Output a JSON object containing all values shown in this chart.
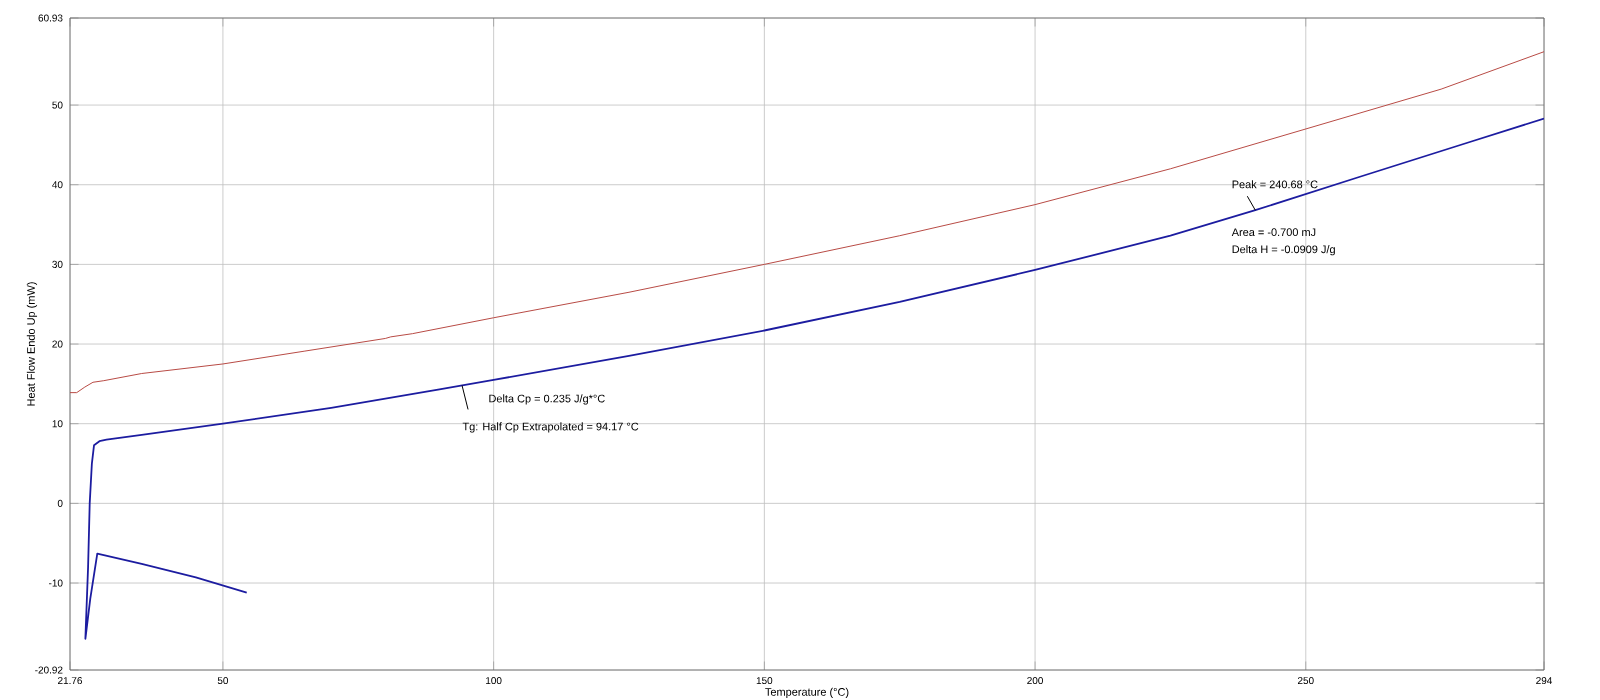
{
  "chart_data": {
    "type": "line",
    "xlabel": "Temperature (°C)",
    "ylabel": "Heat Flow Endo Up (mW)",
    "xlim": [
      21.76,
      294
    ],
    "xticks": [
      21.76,
      50,
      100,
      150,
      200,
      250,
      294
    ],
    "ylim": [
      -20.92,
      60.93
    ],
    "yticks": [
      -20.92,
      -10,
      0,
      10,
      20,
      30,
      40,
      50,
      60.93
    ],
    "grid": true,
    "marker": "none",
    "line_style": "solid",
    "series": [
      {
        "color": "#1c1ca0",
        "x": [
          54.4,
          45,
          35,
          26.8,
          25.5,
          24.6,
          25.1,
          25.4,
          25.8,
          26.2,
          27.2,
          28.5,
          35,
          50,
          70,
          90,
          100,
          125,
          150,
          175,
          200,
          225,
          240.68,
          260,
          280,
          294
        ],
        "values": [
          -11.2,
          -9.3,
          -7.6,
          -6.3,
          -12,
          -17,
          -8,
          0,
          5,
          7.3,
          7.8,
          8,
          8.6,
          10,
          12,
          14.3,
          15.5,
          18.5,
          21.7,
          25.3,
          29.3,
          33.6,
          36.8,
          41,
          45.3,
          48.3
        ]
      },
      {
        "color": "#b84a44",
        "x": [
          21.76,
          23,
          24.5,
          26,
          28,
          35,
          50,
          65,
          80,
          81,
          85,
          100,
          125,
          150,
          175,
          200,
          225,
          250,
          275,
          294
        ],
        "values": [
          13.9,
          13.9,
          14.6,
          15.2,
          15.4,
          16.3,
          17.5,
          19.1,
          20.7,
          20.9,
          21.3,
          23.3,
          26.5,
          30,
          33.6,
          37.5,
          42,
          47,
          52,
          56.7
        ]
      }
    ],
    "annotations": [
      {
        "text": "Tg: Half Cp Extrapolated = 94.17 °C",
        "x": 94.17,
        "y": 14.8
      },
      "Delta Cp = 0.235 J/g*°C",
      {
        "text": "Peak = 240.68 °C",
        "x": 240.68,
        "y": 36.8
      },
      "Area = -0.700 mJ",
      "Delta H = -0.0909 J/g"
    ]
  }
}
